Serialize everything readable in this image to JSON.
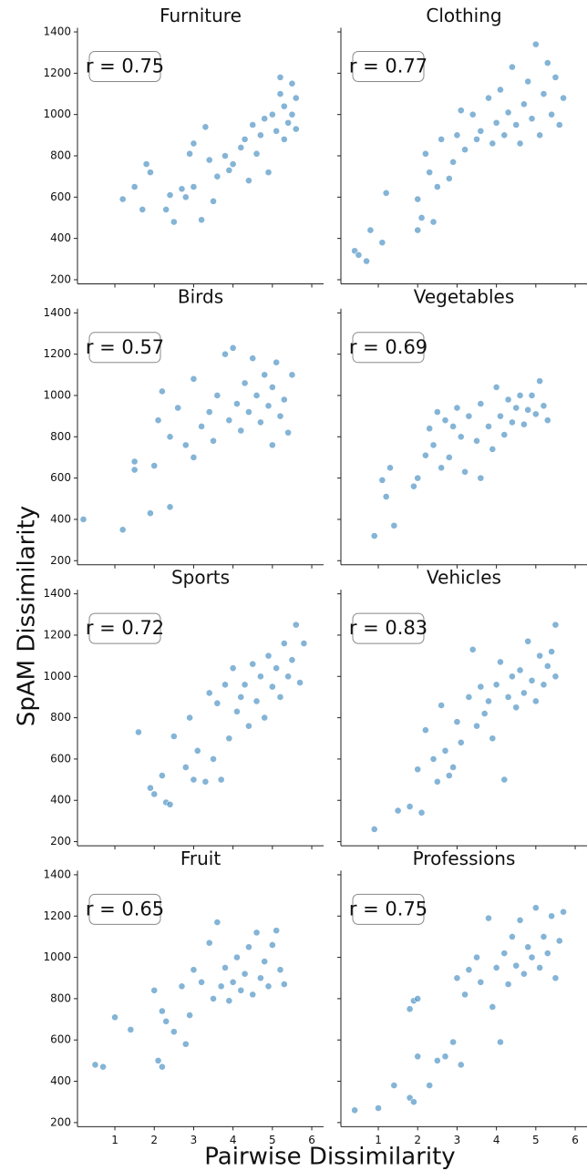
{
  "y_label": "SpAM Dissimilarity",
  "x_label": "Pairwise Dissimilarity",
  "chart_data": [
    {
      "type": "scatter",
      "title": "Furniture",
      "annotation": "r = 0.75",
      "color": "#1f77b4",
      "x": [
        1.2,
        1.5,
        1.7,
        1.8,
        1.9,
        2.3,
        2.4,
        2.5,
        2.7,
        2.8,
        2.9,
        3.0,
        3.0,
        3.2,
        3.3,
        3.4,
        3.5,
        3.6,
        3.8,
        3.9,
        4.0,
        4.2,
        4.3,
        4.4,
        4.5,
        4.6,
        4.7,
        4.8,
        4.9,
        5.0,
        5.1,
        5.2,
        5.3,
        5.4,
        5.5,
        5.6,
        5.3,
        5.5,
        5.2,
        5.6
      ],
      "y": [
        590,
        650,
        540,
        760,
        720,
        540,
        610,
        480,
        640,
        600,
        810,
        860,
        650,
        490,
        940,
        780,
        580,
        700,
        800,
        730,
        760,
        840,
        880,
        680,
        950,
        810,
        900,
        980,
        720,
        1000,
        920,
        1100,
        1040,
        960,
        1150,
        1080,
        880,
        1000,
        1180,
        930
      ],
      "xlim": [
        0.05,
        6.3
      ],
      "ylim": [
        180,
        1420
      ],
      "xticks": [
        1,
        2,
        3,
        4,
        5,
        6
      ],
      "yticks": [
        200,
        400,
        600,
        800,
        1000,
        1200,
        1400
      ]
    },
    {
      "type": "scatter",
      "title": "Clothing",
      "annotation": "r = 0.77",
      "color": "#1f77b4",
      "x": [
        0.4,
        0.5,
        0.7,
        0.8,
        1.1,
        1.2,
        2.0,
        2.0,
        2.1,
        2.2,
        2.3,
        2.4,
        2.5,
        2.6,
        2.8,
        2.9,
        3.0,
        3.1,
        3.2,
        3.4,
        3.5,
        3.6,
        3.8,
        3.9,
        4.0,
        4.1,
        4.2,
        4.3,
        4.4,
        4.5,
        4.6,
        4.7,
        4.8,
        4.9,
        5.0,
        5.1,
        5.2,
        5.3,
        5.4,
        5.5,
        5.6,
        5.7
      ],
      "y": [
        340,
        320,
        290,
        440,
        380,
        620,
        440,
        590,
        500,
        810,
        720,
        480,
        650,
        880,
        690,
        770,
        900,
        1020,
        830,
        1000,
        880,
        920,
        1080,
        860,
        960,
        1120,
        900,
        1010,
        1230,
        950,
        860,
        1050,
        1160,
        980,
        1340,
        900,
        1100,
        1250,
        1000,
        1180,
        950,
        1080
      ],
      "xlim": [
        0.05,
        6.3
      ],
      "ylim": [
        180,
        1420
      ],
      "xticks": [
        1,
        2,
        3,
        4,
        5,
        6
      ],
      "yticks": [
        200,
        400,
        600,
        800,
        1000,
        1200,
        1400
      ]
    },
    {
      "type": "scatter",
      "title": "Birds",
      "annotation": "r = 0.57",
      "color": "#1f77b4",
      "x": [
        0.2,
        1.2,
        1.5,
        1.5,
        1.9,
        2.0,
        2.1,
        2.2,
        2.4,
        2.4,
        2.6,
        2.8,
        3.0,
        3.0,
        3.2,
        3.4,
        3.5,
        3.6,
        3.8,
        3.9,
        4.0,
        4.1,
        4.2,
        4.3,
        4.4,
        4.5,
        4.6,
        4.7,
        4.8,
        4.9,
        5.0,
        5.1,
        5.2,
        5.3,
        5.4,
        5.5,
        5.0
      ],
      "y": [
        400,
        350,
        680,
        640,
        430,
        660,
        880,
        1020,
        460,
        800,
        940,
        760,
        700,
        1080,
        850,
        920,
        780,
        1000,
        1200,
        880,
        1230,
        960,
        830,
        1060,
        920,
        1180,
        1000,
        870,
        1100,
        950,
        1040,
        1160,
        900,
        980,
        820,
        1100,
        760
      ],
      "xlim": [
        0.05,
        6.3
      ],
      "ylim": [
        180,
        1420
      ],
      "xticks": [
        1,
        2,
        3,
        4,
        5,
        6
      ],
      "yticks": [
        200,
        400,
        600,
        800,
        1000,
        1200,
        1400
      ]
    },
    {
      "type": "scatter",
      "title": "Vegetables",
      "annotation": "r = 0.69",
      "color": "#1f77b4",
      "x": [
        0.9,
        1.1,
        1.2,
        1.3,
        1.4,
        1.9,
        2.0,
        2.2,
        2.3,
        2.4,
        2.5,
        2.6,
        2.7,
        2.8,
        2.9,
        3.0,
        3.1,
        3.2,
        3.3,
        3.5,
        3.6,
        3.6,
        3.8,
        3.9,
        4.0,
        4.1,
        4.2,
        4.3,
        4.4,
        4.5,
        4.6,
        4.7,
        4.8,
        4.9,
        5.0,
        5.1,
        5.2,
        5.3
      ],
      "y": [
        320,
        590,
        510,
        650,
        370,
        560,
        600,
        710,
        840,
        760,
        920,
        650,
        880,
        700,
        850,
        940,
        800,
        630,
        900,
        780,
        960,
        600,
        850,
        740,
        1040,
        900,
        810,
        980,
        870,
        940,
        1000,
        860,
        930,
        1000,
        910,
        1070,
        950,
        880
      ],
      "xlim": [
        0.05,
        6.3
      ],
      "ylim": [
        180,
        1420
      ],
      "xticks": [
        1,
        2,
        3,
        4,
        5,
        6
      ],
      "yticks": [
        200,
        400,
        600,
        800,
        1000,
        1200,
        1400
      ]
    },
    {
      "type": "scatter",
      "title": "Sports",
      "annotation": "r = 0.72",
      "color": "#1f77b4",
      "x": [
        1.6,
        1.9,
        2.0,
        2.2,
        2.3,
        2.4,
        2.5,
        2.8,
        2.9,
        3.0,
        3.1,
        3.3,
        3.4,
        3.5,
        3.6,
        3.7,
        3.8,
        3.9,
        4.0,
        4.1,
        4.2,
        4.3,
        4.4,
        4.5,
        4.6,
        4.7,
        4.8,
        4.9,
        5.0,
        5.1,
        5.2,
        5.3,
        5.4,
        5.5,
        5.6,
        5.7,
        5.8
      ],
      "y": [
        730,
        460,
        430,
        520,
        390,
        380,
        710,
        560,
        800,
        500,
        640,
        490,
        920,
        600,
        870,
        500,
        960,
        700,
        1040,
        830,
        900,
        960,
        760,
        1060,
        880,
        1000,
        800,
        1100,
        950,
        1040,
        900,
        1160,
        1000,
        1080,
        1250,
        970,
        1160
      ],
      "xlim": [
        0.05,
        6.3
      ],
      "ylim": [
        180,
        1420
      ],
      "xticks": [
        1,
        2,
        3,
        4,
        5,
        6
      ],
      "yticks": [
        200,
        400,
        600,
        800,
        1000,
        1200,
        1400
      ]
    },
    {
      "type": "scatter",
      "title": "Vehicles",
      "annotation": "r = 0.83",
      "color": "#1f77b4",
      "x": [
        0.9,
        1.5,
        1.8,
        2.1,
        2.0,
        2.2,
        2.4,
        2.5,
        2.6,
        2.7,
        2.8,
        2.9,
        3.0,
        3.1,
        3.3,
        3.4,
        3.5,
        3.6,
        3.7,
        3.8,
        3.9,
        4.0,
        4.1,
        4.2,
        4.3,
        4.4,
        4.5,
        4.6,
        4.7,
        4.8,
        4.9,
        5.0,
        5.1,
        5.2,
        5.3,
        5.4,
        5.5,
        5.5
      ],
      "y": [
        260,
        350,
        370,
        340,
        550,
        740,
        600,
        490,
        860,
        640,
        520,
        560,
        780,
        680,
        900,
        1130,
        760,
        950,
        820,
        880,
        700,
        960,
        1070,
        500,
        900,
        1000,
        850,
        1030,
        920,
        1170,
        980,
        880,
        1100,
        960,
        1050,
        1120,
        1250,
        1000
      ],
      "xlim": [
        0.05,
        6.3
      ],
      "ylim": [
        180,
        1420
      ],
      "xticks": [
        1,
        2,
        3,
        4,
        5,
        6
      ],
      "yticks": [
        200,
        400,
        600,
        800,
        1000,
        1200,
        1400
      ]
    },
    {
      "type": "scatter",
      "title": "Fruit",
      "annotation": "r = 0.65",
      "color": "#1f77b4",
      "x": [
        0.5,
        0.7,
        1.0,
        1.4,
        2.0,
        2.1,
        2.2,
        2.2,
        2.3,
        2.5,
        2.7,
        2.8,
        2.9,
        3.0,
        3.2,
        3.4,
        3.5,
        3.6,
        3.7,
        3.8,
        3.9,
        4.0,
        4.1,
        4.2,
        4.3,
        4.4,
        4.5,
        4.6,
        4.7,
        4.8,
        4.9,
        5.0,
        5.1,
        5.2,
        5.3
      ],
      "y": [
        480,
        470,
        710,
        650,
        840,
        500,
        470,
        740,
        690,
        640,
        860,
        580,
        720,
        940,
        880,
        1070,
        800,
        1170,
        860,
        950,
        790,
        880,
        1000,
        840,
        920,
        1050,
        820,
        1120,
        900,
        980,
        860,
        1060,
        1130,
        940,
        870
      ],
      "xlim": [
        0.05,
        6.3
      ],
      "ylim": [
        180,
        1420
      ],
      "xticks": [
        1,
        2,
        3,
        4,
        5,
        6
      ],
      "yticks": [
        200,
        400,
        600,
        800,
        1000,
        1200,
        1400
      ]
    },
    {
      "type": "scatter",
      "title": "Professions",
      "annotation": "r = 0.75",
      "color": "#1f77b4",
      "x": [
        0.4,
        1.0,
        1.4,
        1.8,
        1.8,
        1.9,
        1.9,
        2.0,
        2.0,
        2.3,
        2.5,
        2.7,
        2.9,
        3.0,
        3.1,
        3.2,
        3.3,
        3.5,
        3.6,
        3.8,
        3.9,
        4.0,
        4.1,
        4.2,
        4.3,
        4.4,
        4.5,
        4.6,
        4.7,
        4.8,
        4.9,
        5.0,
        5.1,
        5.2,
        5.3,
        5.4,
        5.5,
        5.6,
        5.7
      ],
      "y": [
        260,
        270,
        380,
        320,
        750,
        300,
        790,
        800,
        520,
        380,
        500,
        520,
        590,
        900,
        480,
        820,
        940,
        1000,
        880,
        1190,
        760,
        950,
        590,
        1020,
        870,
        1100,
        960,
        1180,
        920,
        1050,
        1000,
        1240,
        950,
        1100,
        1020,
        1200,
        900,
        1080,
        1220
      ],
      "xlim": [
        0.05,
        6.3
      ],
      "ylim": [
        180,
        1420
      ],
      "xticks": [
        1,
        2,
        3,
        4,
        5,
        6
      ],
      "yticks": [
        200,
        400,
        600,
        800,
        1000,
        1200,
        1400
      ]
    }
  ]
}
